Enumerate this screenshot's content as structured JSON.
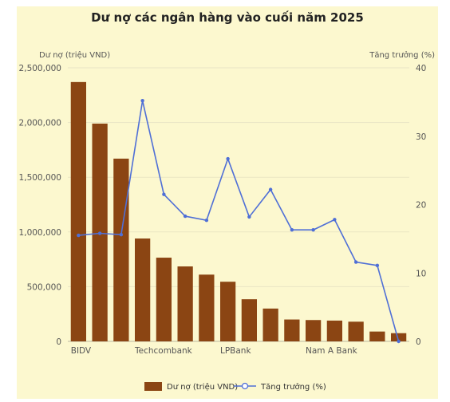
{
  "chart_data": {
    "type": "bar",
    "title": "Dư nợ các ngân hàng vào cuối năm 2025",
    "y_left_label": "Dư nợ (triệu VND)",
    "y_right_label": "Tăng trưởng (%)",
    "x_tick_labels": [
      "BIDV",
      "Techcombank",
      "LPBank",
      "Nam A Bank"
    ],
    "y_left_ticks": [
      "2,500,000",
      "2,000,000",
      "1,500,000",
      "1,000,000",
      "500,000",
      "0"
    ],
    "y_right_ticks": [
      "40",
      "30",
      "20",
      "10",
      "0"
    ],
    "y_left_range": [
      0,
      2500000
    ],
    "y_right_range": [
      0,
      40
    ],
    "categories": [
      "BIDV",
      "",
      "",
      "Techcombank",
      "",
      "",
      "",
      "LPBank",
      "",
      "",
      "",
      "Nam A Bank",
      "",
      "",
      "",
      ""
    ],
    "series": [
      {
        "name": "Dư nợ (triệu VND)",
        "type": "bar",
        "axis": "left",
        "color": "#8b4513",
        "values": [
          2370000,
          1990000,
          1670000,
          940000,
          765000,
          685000,
          610000,
          545000,
          385000,
          300000,
          200000,
          195000,
          190000,
          180000,
          90000,
          75000
        ]
      },
      {
        "name": "Tăng trưởng (%)",
        "type": "line",
        "axis": "right",
        "color": "#4f6fd6",
        "values": [
          15.5,
          15.8,
          15.6,
          35.2,
          21.5,
          18.3,
          17.7,
          26.7,
          18.2,
          22.2,
          16.3,
          16.3,
          17.8,
          11.6,
          11.1,
          0
        ]
      }
    ],
    "legend_position": "bottom",
    "grid": true
  }
}
